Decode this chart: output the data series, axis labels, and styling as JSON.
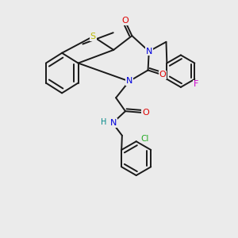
{
  "bg_color": "#ebebeb",
  "bond_color": "#1a1a1a",
  "atom_colors": {
    "S": "#b8b800",
    "N": "#0000dd",
    "O": "#dd0000",
    "F": "#cc00cc",
    "Cl": "#22aa22",
    "H": "#008888",
    "C": "#1a1a1a"
  },
  "figsize": [
    3.0,
    3.0
  ],
  "dpi": 100
}
